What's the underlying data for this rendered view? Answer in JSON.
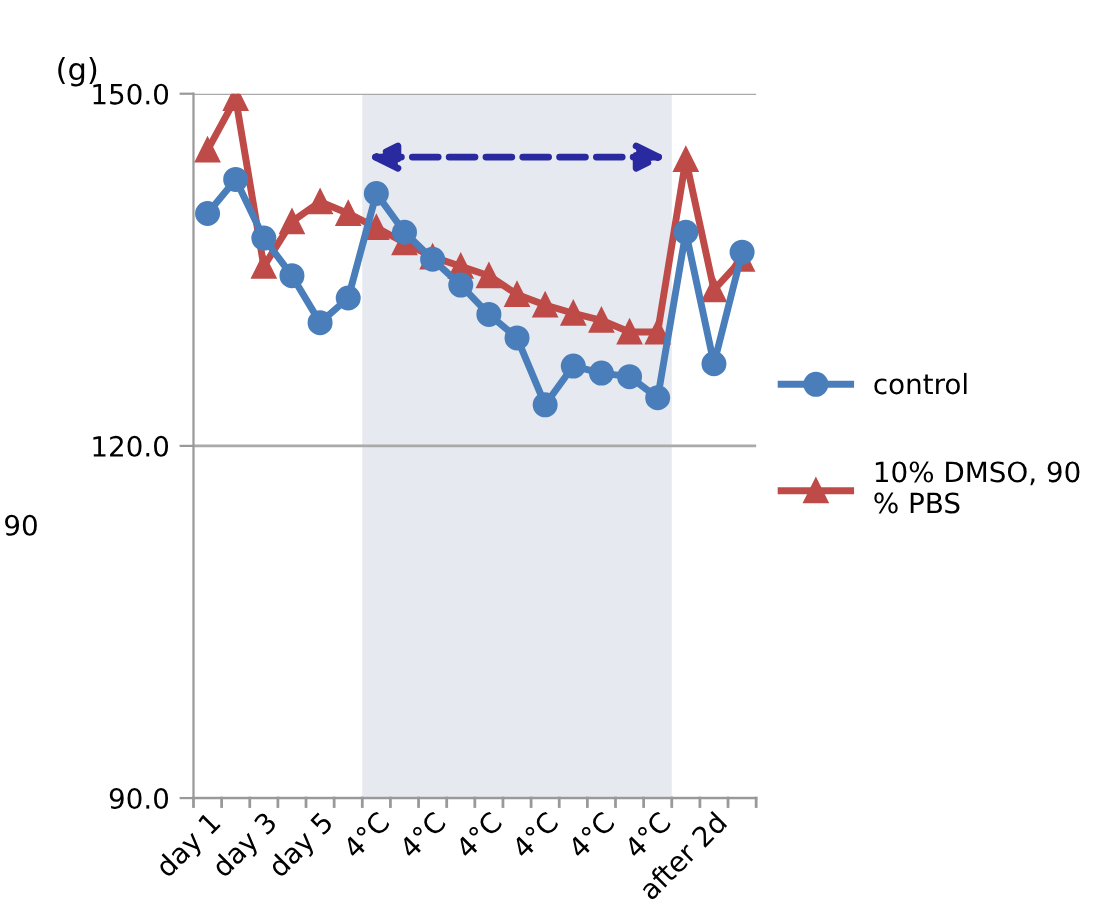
{
  "chart_data": {
    "type": "line",
    "ylabel": "(g)",
    "categories": [
      "day 1",
      null,
      "day 3",
      null,
      "day 5",
      null,
      "4°C",
      null,
      "4°C",
      null,
      "4°C",
      null,
      "4°C",
      null,
      "4°C",
      null,
      "4°C",
      null,
      "after 2d",
      null
    ],
    "series": [
      {
        "name": "control",
        "color": "#4a7ebb",
        "marker": "circle",
        "values": [
          139.8,
          142.7,
          137.7,
          134.5,
          130.5,
          132.6,
          141.5,
          138.2,
          135.9,
          133.7,
          131.2,
          129.2,
          123.5,
          126.8,
          126.2,
          125.9,
          124.1,
          138.2,
          127.0,
          136.5
        ]
      },
      {
        "name": "10% DMSO, 90\n% PBS",
        "color": "#be4b48",
        "marker": "triangle",
        "values": [
          145.2,
          149.6,
          135.3,
          139.1,
          140.8,
          139.8,
          138.6,
          137.3,
          136.1,
          135.3,
          134.5,
          132.9,
          132.0,
          131.3,
          130.7,
          129.7,
          129.7,
          144.4,
          133.3,
          135.9
        ]
      }
    ],
    "ylim": [
      90,
      150
    ],
    "yticks": [
      {
        "value": 90,
        "label": "90.0"
      },
      {
        "value": 120,
        "label": "120.0"
      },
      {
        "value": 150,
        "label": "150.0"
      }
    ],
    "annotations": [
      "90"
    ],
    "grid": "y",
    "legend": "right",
    "line_style": "solid"
  }
}
